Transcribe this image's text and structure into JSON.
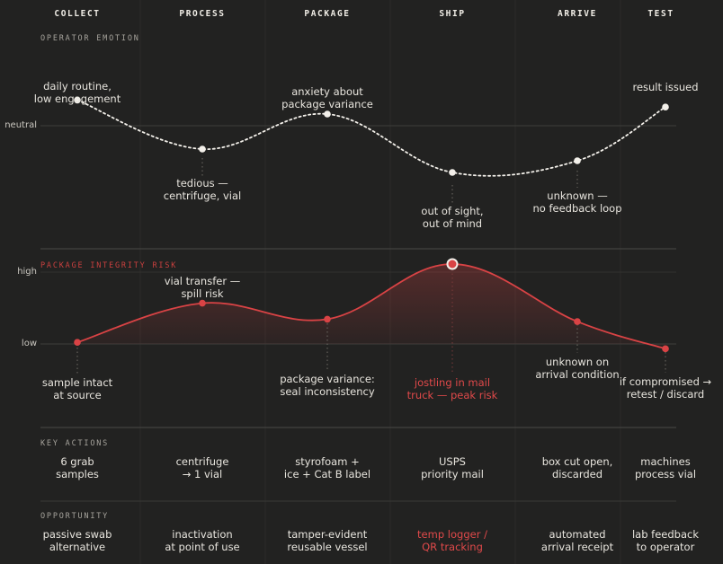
{
  "colors": {
    "background": "#222221",
    "text": "#e6e3dc",
    "risk_accent": "#d94345",
    "emotion_line": "#f3f0ea",
    "grid": "#3a3937"
  },
  "stages": [
    "COLLECT",
    "PROCESS",
    "PACKAGE",
    "SHIP",
    "ARRIVE",
    "TEST"
  ],
  "sections": {
    "emotion": "OPERATOR EMOTION",
    "risk": "PACKAGE INTEGRITY RISK",
    "key_actions": "KEY ACTIONS",
    "opportunity": "OPPORTUNITY"
  },
  "axis": {
    "neutral": "neutral",
    "high": "high",
    "low": "low"
  },
  "chart_data": [
    {
      "type": "line",
      "title": "OPERATOR EMOTION",
      "categories": [
        "COLLECT",
        "PROCESS",
        "PACKAGE",
        "SHIP",
        "ARRIVE",
        "TEST"
      ],
      "values": [
        0.55,
        -0.5,
        0.25,
        -1.0,
        -0.75,
        0.4
      ],
      "ylim": [
        -1.5,
        1.5
      ],
      "ylabel": "neutral",
      "style": "dotted"
    },
    {
      "type": "area",
      "title": "PACKAGE INTEGRITY RISK",
      "categories": [
        "COLLECT",
        "PROCESS",
        "PACKAGE",
        "SHIP",
        "ARRIVE",
        "TEST"
      ],
      "values": [
        0.02,
        0.51,
        0.31,
        1.0,
        0.28,
        -0.06
      ],
      "ylim": [
        0,
        1
      ],
      "yticks": [
        "low",
        "high"
      ],
      "highlight_index": 3
    }
  ],
  "emotion_annotations": [
    "daily routine,\nlow engagement",
    "tedious —\ncentrifuge, vial",
    "anxiety about\npackage variance",
    "out of sight,\nout of mind",
    "unknown —\nno feedback loop",
    "result issued"
  ],
  "risk_annotations": [
    "sample intact\nat source",
    "vial transfer —\nspill risk",
    "package variance:\nseal inconsistency",
    "jostling in mail\ntruck — peak risk",
    "unknown on\narrival condition",
    "if compromised →\nretest / discard"
  ],
  "key_actions": [
    "6 grab\nsamples",
    "centrifuge\n→ 1 vial",
    "styrofoam +\nice + Cat B label",
    "USPS\npriority mail",
    "box cut open,\ndiscarded",
    "machines\nprocess vial"
  ],
  "opportunities": [
    "passive swab\nalternative",
    "inactivation\nat point of use",
    "tamper-evident\nreusable vessel",
    "temp logger /\nQR tracking",
    "automated\narrival receipt",
    "lab feedback\nto operator"
  ]
}
